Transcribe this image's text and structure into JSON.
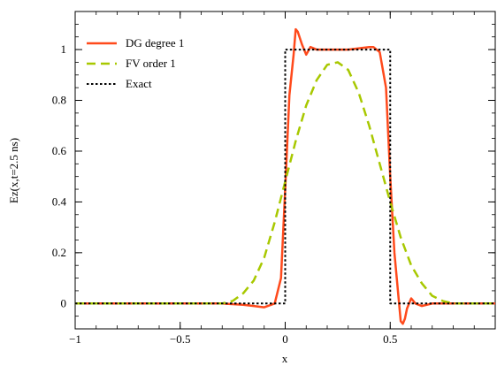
{
  "chart_data": {
    "type": "line",
    "title": "",
    "xlabel": "x",
    "ylabel": "Ez(x,t=2.5 ns)",
    "xlim": [
      -1,
      1
    ],
    "ylim": [
      -0.1,
      1.15
    ],
    "x_ticks": [
      -1,
      -0.5,
      0,
      0.5
    ],
    "x_tick_labels": [
      "−1",
      "−0.5",
      "0",
      "0.5"
    ],
    "y_ticks": [
      0,
      0.2,
      0.4,
      0.6,
      0.8,
      1
    ],
    "y_tick_labels": [
      "0",
      "0.2",
      "0.4",
      "0.6",
      "0.8",
      "1"
    ],
    "grid": false,
    "legend_position": "top-left",
    "series": [
      {
        "name": "DG degree 1",
        "color": "#ff4a1c",
        "style": "solid",
        "x": [
          -1,
          -0.3,
          -0.2,
          -0.15,
          -0.1,
          -0.05,
          -0.02,
          0,
          0.02,
          0.04,
          0.05,
          0.06,
          0.08,
          0.1,
          0.12,
          0.15,
          0.2,
          0.3,
          0.4,
          0.42,
          0.45,
          0.48,
          0.5,
          0.52,
          0.54,
          0.55,
          0.56,
          0.57,
          0.58,
          0.6,
          0.62,
          0.65,
          0.7,
          1
        ],
        "y": [
          0,
          0,
          -0.005,
          -0.01,
          -0.015,
          0.0,
          0.1,
          0.45,
          0.82,
          0.98,
          1.08,
          1.07,
          1.02,
          0.98,
          1.01,
          1.0,
          1.0,
          1.0,
          1.01,
          1.01,
          0.99,
          0.85,
          0.5,
          0.2,
          0.02,
          -0.07,
          -0.08,
          -0.06,
          -0.02,
          0.02,
          0.0,
          -0.01,
          0,
          0
        ]
      },
      {
        "name": "FV  order 1",
        "color": "#a8c800",
        "style": "dashed",
        "x": [
          -1,
          -0.3,
          -0.25,
          -0.2,
          -0.15,
          -0.1,
          -0.05,
          0,
          0.05,
          0.1,
          0.15,
          0.2,
          0.25,
          0.3,
          0.35,
          0.4,
          0.45,
          0.5,
          0.55,
          0.6,
          0.65,
          0.7,
          0.75,
          0.8,
          1
        ],
        "y": [
          0,
          0,
          0.01,
          0.04,
          0.09,
          0.18,
          0.32,
          0.48,
          0.64,
          0.78,
          0.88,
          0.94,
          0.95,
          0.92,
          0.83,
          0.7,
          0.55,
          0.4,
          0.26,
          0.15,
          0.08,
          0.03,
          0.01,
          0,
          0
        ]
      },
      {
        "name": "Exact",
        "color": "#000000",
        "style": "dotted",
        "x": [
          -1,
          0,
          0,
          0.5,
          0.5,
          1
        ],
        "y": [
          0,
          0,
          1,
          1,
          0,
          0
        ]
      }
    ]
  }
}
